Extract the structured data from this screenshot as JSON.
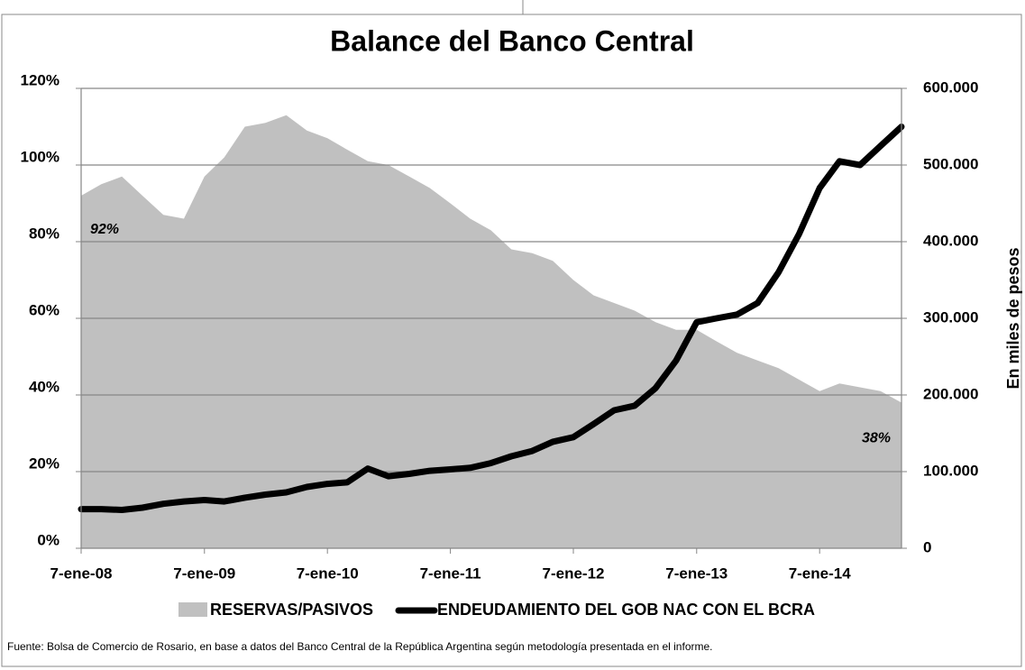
{
  "chart_data": {
    "type": "line",
    "title": "Balance del Banco Central",
    "y2label": "En miles de pesos",
    "source": "Fuente: Bolsa de Comercio de Rosario, en base a datos del Banco Central de la República Argentina según metodología presentada en el informe.",
    "annotations": [
      "92%",
      "38%"
    ],
    "x": [
      "2008-01-07",
      "2008-03-07",
      "2008-05-07",
      "2008-07-07",
      "2008-09-07",
      "2008-11-07",
      "2009-01-07",
      "2009-03-07",
      "2009-05-07",
      "2009-07-07",
      "2009-09-07",
      "2009-11-07",
      "2010-01-07",
      "2010-03-07",
      "2010-05-07",
      "2010-07-07",
      "2010-09-07",
      "2010-11-07",
      "2011-01-07",
      "2011-03-07",
      "2011-05-07",
      "2011-07-07",
      "2011-09-07",
      "2011-11-07",
      "2012-01-07",
      "2012-03-07",
      "2012-05-07",
      "2012-07-07",
      "2012-09-07",
      "2012-11-07",
      "2013-01-07",
      "2013-03-07",
      "2013-05-07",
      "2013-07-07",
      "2013-09-07",
      "2013-11-07",
      "2014-01-07",
      "2014-03-07",
      "2014-05-07",
      "2014-07-07",
      "2014-09-07"
    ],
    "xlim": [
      "2008-01-07",
      "2014-09-07"
    ],
    "xticks": [
      {
        "value": "2008-01-07",
        "label": "7-ene-08"
      },
      {
        "value": "2009-01-07",
        "label": "7-ene-09"
      },
      {
        "value": "2010-01-07",
        "label": "7-ene-10"
      },
      {
        "value": "2011-01-07",
        "label": "7-ene-11"
      },
      {
        "value": "2012-01-07",
        "label": "7-ene-12"
      },
      {
        "value": "2013-01-07",
        "label": "7-ene-13"
      },
      {
        "value": "2014-01-07",
        "label": "7-ene-14"
      }
    ],
    "ylim": [
      0,
      120
    ],
    "yticks": [
      {
        "value": 0,
        "label": "0%"
      },
      {
        "value": 20,
        "label": "20%"
      },
      {
        "value": 40,
        "label": "40%"
      },
      {
        "value": 60,
        "label": "60%"
      },
      {
        "value": 80,
        "label": "80%"
      },
      {
        "value": 100,
        "label": "100%"
      },
      {
        "value": 120,
        "label": "120%"
      }
    ],
    "y2lim": [
      0,
      600000
    ],
    "y2ticks": [
      0,
      {
        "value": 100000,
        "label": "100.000"
      },
      {
        "value": 200000,
        "label": "200.000"
      },
      {
        "value": 300000,
        "label": "300.000"
      },
      {
        "value": 400000,
        "label": "400.000"
      },
      {
        "value": 500000,
        "label": "500.000"
      },
      {
        "value": 600000,
        "label": "600.000"
      }
    ],
    "grid": true,
    "series": [
      {
        "name": "RESERVAS/PASIVOS",
        "type": "area",
        "color": "#c0c0c0",
        "values": [
          92,
          95,
          97,
          92,
          87,
          86,
          97,
          102,
          110,
          111,
          113,
          109,
          107,
          104,
          101,
          100,
          97,
          94,
          90,
          86,
          83,
          78,
          77,
          75,
          70,
          66,
          64,
          62,
          59,
          57,
          57,
          54,
          51,
          49,
          47,
          44,
          41,
          43,
          42,
          41,
          38
        ]
      },
      {
        "name": "ENDEUDAMIENTO DEL GOB NAC CON EL BCRA",
        "type": "line",
        "axis": "y2",
        "color": "#000000",
        "values": [
          51000,
          51000,
          50000,
          53000,
          58000,
          61000,
          63000,
          61000,
          66000,
          70000,
          73000,
          80000,
          84000,
          86000,
          104000,
          94000,
          97000,
          101000,
          103000,
          105000,
          111000,
          120000,
          127000,
          139000,
          145000,
          162000,
          180000,
          186000,
          209000,
          245000,
          295000,
          300000,
          305000,
          320000,
          360000,
          410000,
          470000,
          505000,
          500000,
          525000,
          550000
        ]
      }
    ]
  }
}
